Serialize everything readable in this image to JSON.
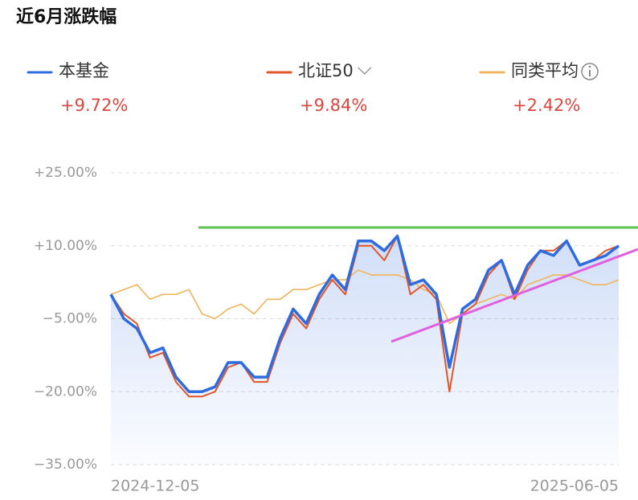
{
  "chart_data": {
    "type": "line",
    "title": "近6月涨跌幅",
    "categories": [
      "2024-12-05",
      null,
      null,
      null,
      null,
      null,
      null,
      null,
      null,
      null,
      null,
      null,
      null,
      null,
      null,
      null,
      null,
      null,
      null,
      null,
      null,
      null,
      null,
      null,
      null,
      null,
      null,
      null,
      null,
      null,
      null,
      null,
      null,
      null,
      null,
      null,
      null,
      null,
      null,
      "2025-06-05"
    ],
    "series": [
      {
        "name": "本基金",
        "color": "#2f6be0",
        "change_label": "+9.72%",
        "values": [
          0,
          -5,
          -7,
          -12,
          -11,
          -17,
          -20,
          -20,
          -19,
          -14,
          -14,
          -17,
          -17,
          -9,
          -3,
          -6,
          0,
          4,
          1,
          11,
          11,
          9,
          12,
          2,
          3,
          0,
          -15,
          -3,
          -1,
          5,
          7,
          0,
          6,
          9,
          8,
          11,
          6,
          7,
          8,
          10
        ]
      },
      {
        "name": "北证50",
        "color": "#e0562a",
        "change_label": "+9.84%",
        "values": [
          0,
          -4,
          -6,
          -13,
          -12,
          -18,
          -21,
          -21,
          -20,
          -15,
          -14,
          -18,
          -18,
          -10,
          -4,
          -7,
          -1,
          3,
          0,
          10,
          10,
          7,
          12,
          0,
          2,
          -1,
          -20,
          -4,
          -2,
          4,
          7,
          -1,
          5,
          9,
          9,
          11,
          6,
          7,
          9,
          10
        ]
      },
      {
        "name": "同类平均",
        "color": "#f0b55c",
        "change_label": "+2.42%",
        "values": [
          0,
          1,
          2,
          -1,
          0,
          0,
          1,
          -4,
          -5,
          -3,
          -2,
          -4,
          -1,
          -1,
          1,
          1,
          2,
          3,
          3,
          5,
          4,
          4,
          4,
          3,
          1,
          0,
          -6,
          -4,
          -2,
          -1,
          0,
          -1,
          2,
          3,
          4,
          4,
          3,
          2,
          2,
          3
        ]
      }
    ],
    "ylim": [
      -35,
      25
    ],
    "yticks": [
      {
        "value": 25,
        "label": "+25.00%"
      },
      {
        "value": 10,
        "label": "+10.00%"
      },
      {
        "value": -5,
        "label": "−5.00%"
      },
      {
        "value": -20,
        "label": "−20.00%"
      },
      {
        "value": -35,
        "label": "−35.00%"
      }
    ],
    "grid": true
  }
}
